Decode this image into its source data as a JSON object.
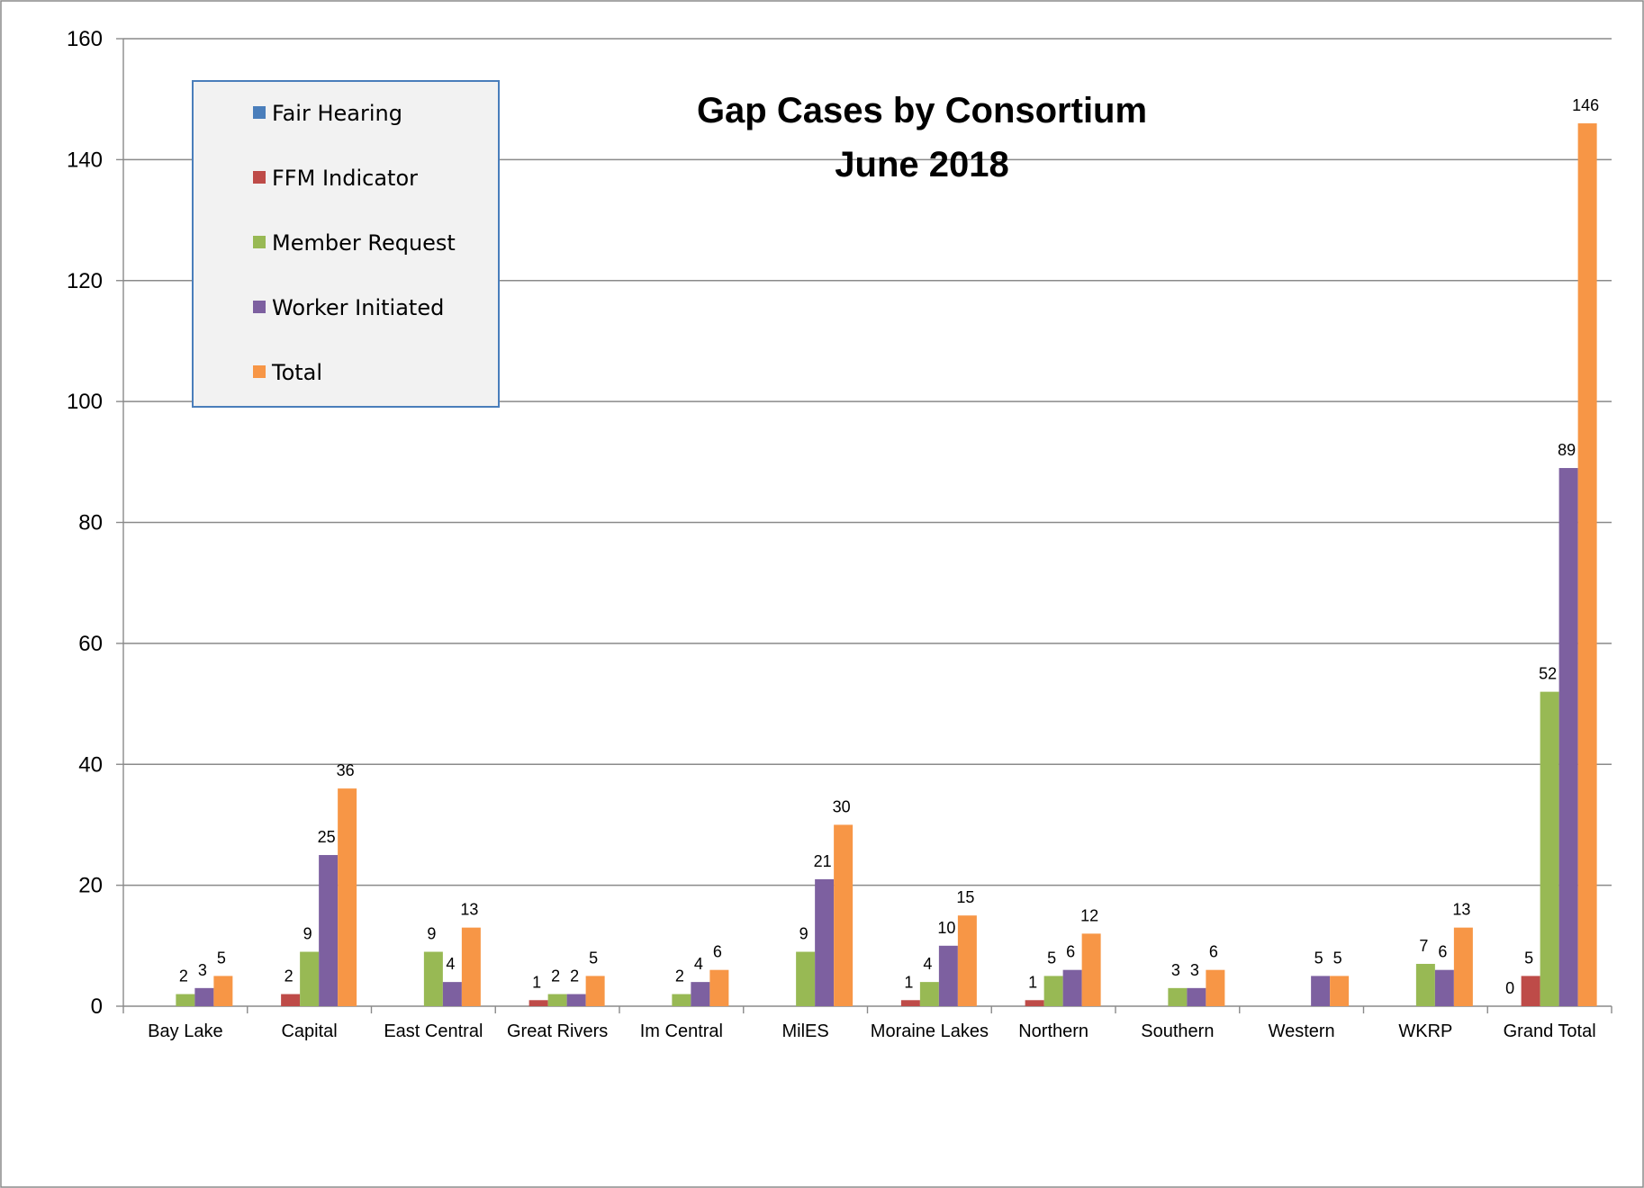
{
  "chart_data": {
    "type": "bar",
    "title": [
      "Gap Cases by Consortium",
      "June 2018"
    ],
    "xlabel": "",
    "ylabel": "",
    "ylim": [
      0,
      160
    ],
    "yticks": [
      0,
      20,
      40,
      60,
      80,
      100,
      120,
      140,
      160
    ],
    "grid": true,
    "legend_position": "top-left",
    "categories": [
      "Bay Lake",
      "Capital",
      "East Central",
      "Great Rivers",
      "Im Central",
      "MilES",
      "Moraine Lakes",
      "Northern",
      "Southern",
      "Western",
      "WKRP",
      "Grand Total"
    ],
    "series": [
      {
        "name": "Fair Hearing",
        "color": "#4a7ebb",
        "values": [
          null,
          null,
          null,
          null,
          null,
          null,
          null,
          null,
          null,
          null,
          null,
          0
        ]
      },
      {
        "name": "FFM Indicator",
        "color": "#be4b48",
        "values": [
          null,
          2,
          null,
          1,
          null,
          null,
          1,
          1,
          null,
          null,
          null,
          5
        ]
      },
      {
        "name": "Member Request",
        "color": "#98b954",
        "values": [
          2,
          9,
          9,
          2,
          2,
          9,
          4,
          5,
          3,
          null,
          7,
          52
        ]
      },
      {
        "name": "Worker Initiated",
        "color": "#7d60a0",
        "values": [
          3,
          25,
          4,
          2,
          4,
          21,
          10,
          6,
          3,
          5,
          6,
          89
        ]
      },
      {
        "name": "Total",
        "color": "#f79646",
        "values": [
          5,
          36,
          13,
          5,
          6,
          30,
          15,
          12,
          6,
          5,
          13,
          146
        ]
      }
    ],
    "data_labels": {
      "Fair Hearing": [
        null,
        null,
        null,
        null,
        null,
        null,
        null,
        null,
        null,
        null,
        null,
        0
      ],
      "FFM Indicator": [
        null,
        2,
        null,
        1,
        null,
        null,
        1,
        1,
        null,
        null,
        null,
        5
      ],
      "Member Request": [
        2,
        9,
        9,
        2,
        2,
        9,
        4,
        5,
        3,
        null,
        7,
        52
      ],
      "Worker Initiated": [
        3,
        25,
        4,
        2,
        4,
        21,
        10,
        6,
        3,
        5,
        6,
        89
      ],
      "Total": [
        5,
        36,
        13,
        5,
        6,
        30,
        15,
        12,
        6,
        5,
        13,
        146
      ]
    }
  }
}
